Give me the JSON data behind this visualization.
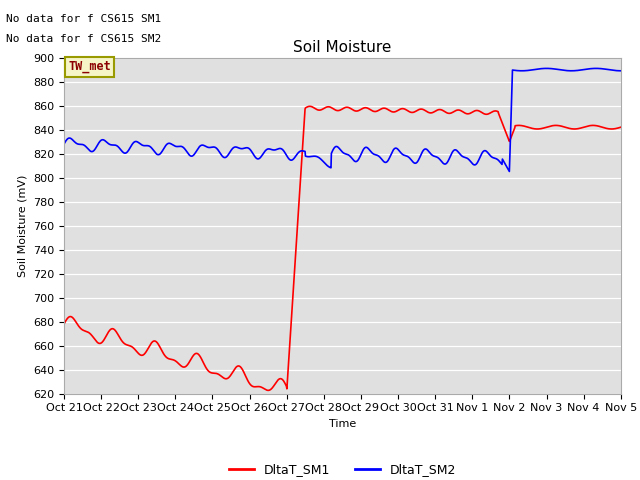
{
  "title": "Soil Moisture",
  "xlabel": "Time",
  "ylabel": "Soil Moisture (mV)",
  "ylim": [
    620,
    900
  ],
  "yticks": [
    620,
    640,
    660,
    680,
    700,
    720,
    740,
    760,
    780,
    800,
    820,
    840,
    860,
    880,
    900
  ],
  "bg_color": "#e0e0e0",
  "line1_color": "red",
  "line2_color": "blue",
  "legend1": "DltaT_SM1",
  "legend2": "DltaT_SM2",
  "note1": "No data for f CS615 SM1",
  "note2": "No data for f CS615 SM2",
  "box_label": "TW_met",
  "xtick_labels": [
    "Oct 21",
    "Oct 22",
    "Oct 23",
    "Oct 24",
    "Oct 25",
    "Oct 26",
    "Oct 27",
    "Oct 28",
    "Oct 29",
    "Oct 30",
    "Oct 31",
    "Nov 1",
    "Nov 2",
    "Nov 3",
    "Nov 4",
    "Nov 5"
  ],
  "title_fontsize": 11,
  "axis_fontsize": 8,
  "tick_fontsize": 8
}
